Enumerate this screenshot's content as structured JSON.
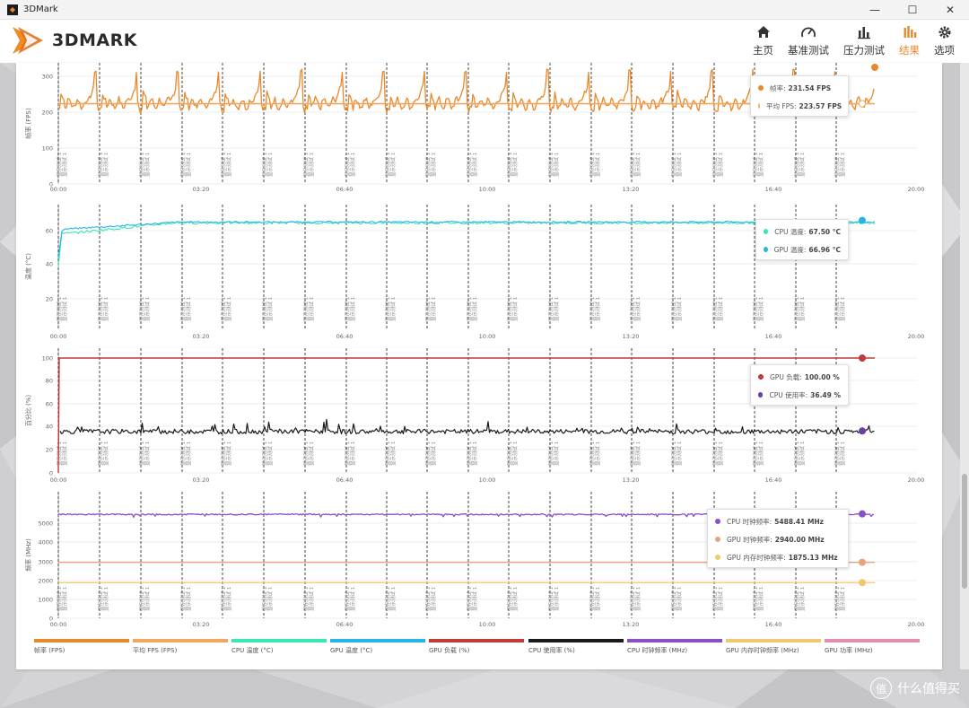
{
  "window": {
    "title": "3DMark",
    "controls": [
      "—",
      "☐",
      "✕"
    ]
  },
  "header": {
    "logo_text": "3DMARK",
    "nav": [
      {
        "label": "主页",
        "icon": "home-icon",
        "active": false
      },
      {
        "label": "基准测试",
        "icon": "gauge-icon",
        "active": false
      },
      {
        "label": "压力测试",
        "icon": "bar-chart-icon",
        "active": false
      },
      {
        "label": "结果",
        "icon": "results-icon",
        "active": true
      },
      {
        "label": "选项",
        "icon": "gear-icon",
        "active": false
      }
    ]
  },
  "colors": {
    "accent": "#e9882a",
    "fps": "#e9882a",
    "avg_fps": "#f0a860",
    "cpu_temp": "#39e6b6",
    "gpu_temp": "#27b5e8",
    "gpu_load": "#c0393b",
    "cpu_usage": "#1a1a1a",
    "cpu_clock": "#8b4fc4",
    "gpu_clock": "#e8a27e",
    "gpu_mem_clock": "#f0c870",
    "gpu_power": "#e08fb0"
  },
  "time_ticks": [
    "00:00",
    "03:20",
    "06:40",
    "10:00",
    "13:20",
    "16:40",
    "20:00"
  ],
  "loop_label": "显示测试 1",
  "charts": [
    {
      "ylabel": "帧率 (FPS)",
      "yticks": [
        "0",
        "100",
        "200",
        "300"
      ],
      "tooltip": [
        {
          "label": "帧率:",
          "value": "231.54 FPS",
          "color": "#e9882a"
        },
        {
          "label": "平均 FPS:",
          "value": "223.57 FPS",
          "color": "#f6d2a8"
        }
      ]
    },
    {
      "ylabel": "温度 (°C)",
      "yticks": [
        "20",
        "40",
        "60"
      ],
      "tooltip": [
        {
          "label": "CPU 温度:",
          "value": "67.50 °C",
          "color": "#39e6b6"
        },
        {
          "label": "GPU 温度:",
          "value": "66.96 °C",
          "color": "#27b5e8"
        }
      ]
    },
    {
      "ylabel": "百分比 (%)",
      "yticks": [
        "0",
        "20",
        "40",
        "60",
        "80",
        "100"
      ],
      "tooltip": [
        {
          "label": "GPU 负载:",
          "value": "100.00 %",
          "color": "#c0393b"
        },
        {
          "label": "CPU 使用率:",
          "value": "36.49 %",
          "color": "#6b3fa8"
        }
      ]
    },
    {
      "ylabel": "频率 (MHz)",
      "yticks": [
        "0",
        "1000",
        "2000",
        "3000",
        "4000",
        "5000"
      ],
      "tooltip": [
        {
          "label": "CPU 时钟频率:",
          "value": "5488.41 MHz",
          "color": "#8b4fc4"
        },
        {
          "label": "GPU 时钟频率:",
          "value": "2940.00 MHz",
          "color": "#e8a27e"
        },
        {
          "label": "GPU 内存时钟频率:",
          "value": "1875.13 MHz",
          "color": "#f0c870"
        }
      ]
    }
  ],
  "legend": [
    {
      "label": "帧率 (FPS)",
      "color": "#e9882a"
    },
    {
      "label": "平均 FPS (FPS)",
      "color": "#f0a860"
    },
    {
      "label": "CPU 温度 (°C)",
      "color": "#39e6b6"
    },
    {
      "label": "GPU 温度 (°C)",
      "color": "#27b5e8"
    },
    {
      "label": "GPU 负载 (%)",
      "color": "#c0393b"
    },
    {
      "label": "CPU 使用率 (%)",
      "color": "#1a1a1a"
    },
    {
      "label": "CPU 时钟频率 (MHz)",
      "color": "#8b4fc4"
    },
    {
      "label": "GPU 内存时钟频率 (MHz)",
      "color": "#f0c870"
    },
    {
      "label": "GPU 功率 (MHz)",
      "color": "#e08fb0"
    }
  ],
  "watermark": {
    "badge": "值",
    "text": "什么值得买"
  }
}
